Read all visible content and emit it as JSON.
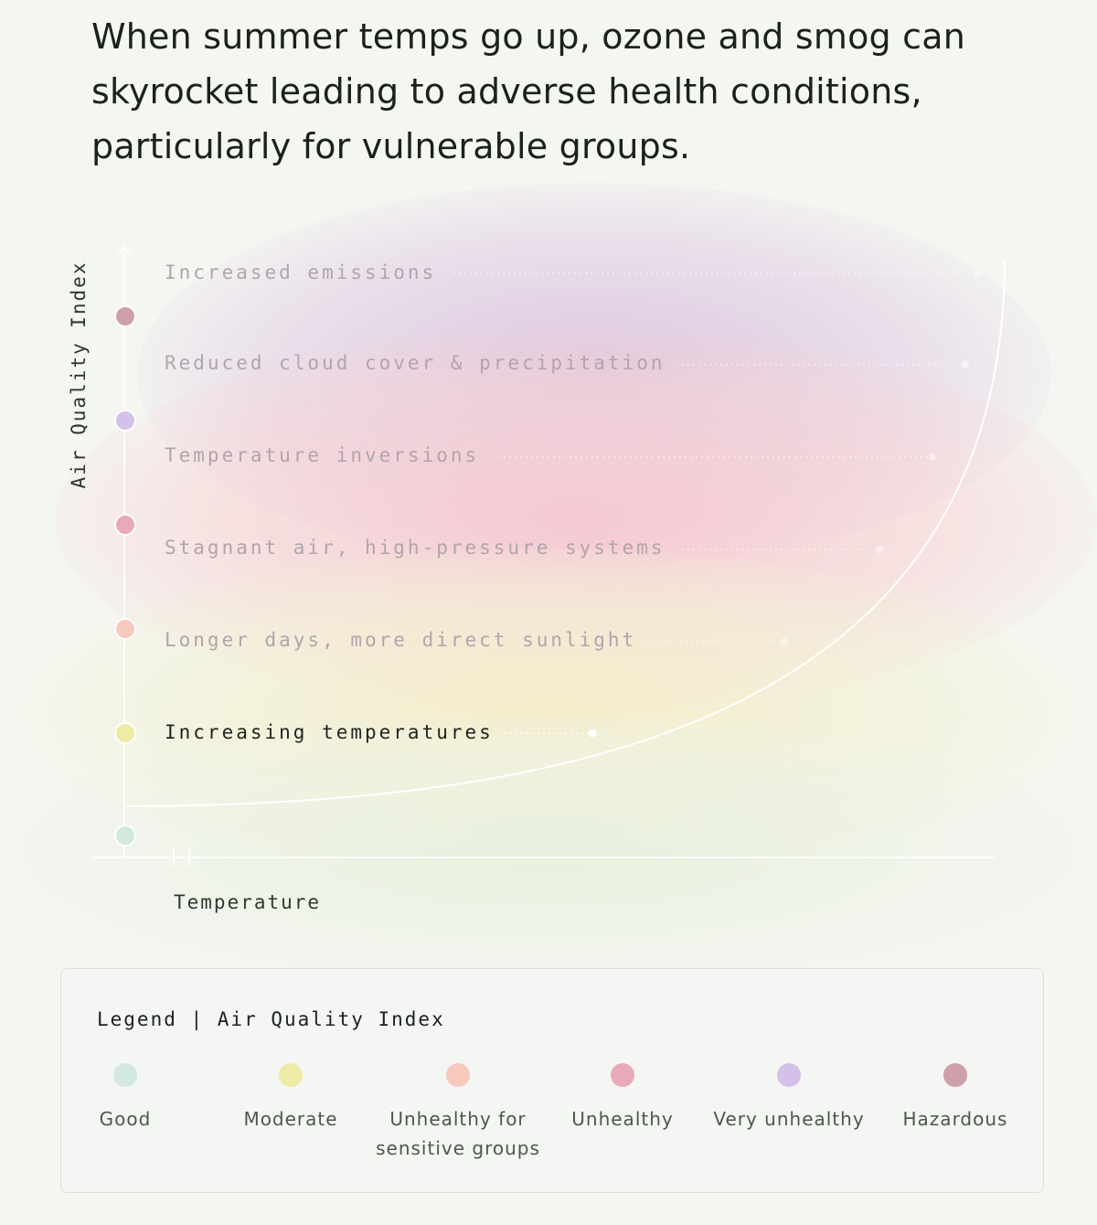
{
  "headline": "When summer temps go up, ozone and smog can skyrocket leading to adverse health conditions, particularly for vulnerable groups.",
  "chart_data": {
    "type": "diagram",
    "ylabel": "Air Quality Index",
    "xlabel": "Temperature",
    "curve": "exponential",
    "factors": [
      {
        "label": "Increasing temperatures",
        "active": true
      },
      {
        "label": "Longer days, more direct sunlight",
        "active": false
      },
      {
        "label": "Stagnant air, high-pressure systems",
        "active": false
      },
      {
        "label": "Temperature inversions",
        "active": false
      },
      {
        "label": "Reduced cloud cover & precipitation",
        "active": false
      },
      {
        "label": "Increased emissions",
        "active": false
      }
    ],
    "aqi_levels": [
      "Good",
      "Moderate",
      "Unhealthy for sensitive groups",
      "Unhealthy",
      "Very unhealthy",
      "Hazardous"
    ]
  },
  "legend": {
    "title": "Legend | Air Quality Index",
    "items": [
      {
        "label": "Good",
        "color": "#d3e8df"
      },
      {
        "label": "Moderate",
        "color": "#eeeba6"
      },
      {
        "label": "Unhealthy for sensitive groups",
        "color": "#f7c9bd"
      },
      {
        "label": "Unhealthy",
        "color": "#e8aab9"
      },
      {
        "label": "Very unhealthy",
        "color": "#d3c1e9"
      },
      {
        "label": "Hazardous",
        "color": "#cf9fac"
      }
    ]
  }
}
